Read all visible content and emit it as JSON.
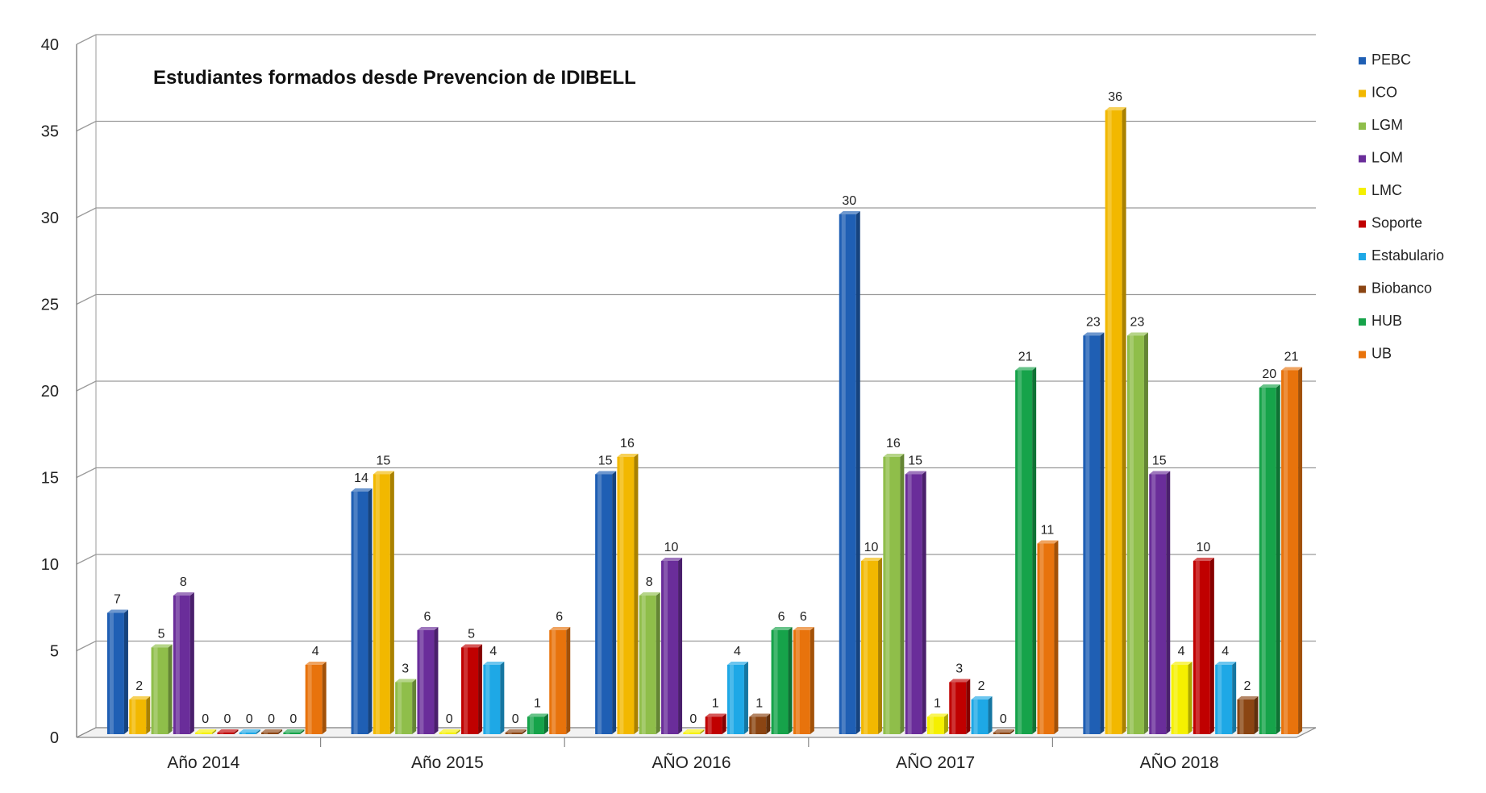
{
  "chart_data": {
    "type": "bar",
    "title": "Estudiantes formados desde Prevencion de IDIBELL",
    "xlabel": "",
    "ylabel": "",
    "ylim": [
      0,
      40
    ],
    "yticks": [
      0,
      5,
      10,
      15,
      20,
      25,
      30,
      35,
      40
    ],
    "grid": true,
    "legend_position": "right",
    "categories": [
      "Año 2014",
      "Año 2015",
      "AÑO 2016",
      "AÑO 2017",
      "AÑO 2018"
    ],
    "series": [
      {
        "name": "PEBC",
        "color": "#1f5fb4",
        "values": [
          7,
          14,
          15,
          30,
          23
        ]
      },
      {
        "name": "ICO",
        "color": "#f2b800",
        "values": [
          2,
          15,
          16,
          10,
          36
        ]
      },
      {
        "name": "LGM",
        "color": "#8fbe4a",
        "values": [
          5,
          3,
          8,
          16,
          23
        ]
      },
      {
        "name": "LOM",
        "color": "#6a2d9a",
        "values": [
          8,
          6,
          10,
          15,
          15
        ]
      },
      {
        "name": "LMC",
        "color": "#f5f000",
        "values": [
          0,
          0,
          0,
          1,
          4
        ]
      },
      {
        "name": "Soporte",
        "color": "#c00000",
        "values": [
          0,
          5,
          1,
          3,
          10
        ]
      },
      {
        "name": "Estabulario",
        "color": "#1ea8e6",
        "values": [
          0,
          4,
          4,
          2,
          4
        ]
      },
      {
        "name": "Biobanco",
        "color": "#8b4513",
        "values": [
          0,
          0,
          1,
          0,
          2
        ]
      },
      {
        "name": "HUB",
        "color": "#16a34a",
        "values": [
          0,
          1,
          6,
          21,
          20
        ]
      },
      {
        "name": "UB",
        "color": "#e8730c",
        "values": [
          4,
          6,
          6,
          11,
          21
        ]
      }
    ]
  }
}
